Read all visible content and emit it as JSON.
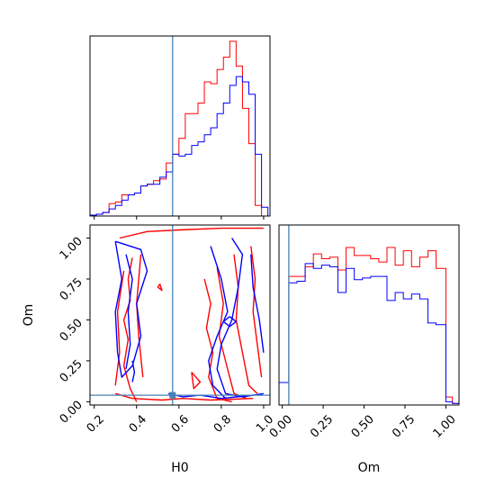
{
  "chart_data": {
    "type": "corner",
    "parameters": [
      "H0",
      "Om"
    ],
    "truth": {
      "H0": 0.57,
      "Om": 0.04
    },
    "colors": {
      "set_a": "#ff0000",
      "set_b": "#0000ff",
      "truth": "#4682b4"
    },
    "grid": false,
    "axes": {
      "H0": {
        "label": "H0",
        "range": [
          0.18,
          1.03
        ],
        "ticks": [
          0.2,
          0.4,
          0.6,
          0.8,
          1.0
        ],
        "tick_labels": [
          "0.2",
          "0.4",
          "0.6",
          "0.8",
          "1.0"
        ]
      },
      "Om": {
        "label": "Om",
        "range": [
          -0.02,
          1.08
        ],
        "ticks": [
          0.0,
          0.25,
          0.5,
          0.75,
          1.0
        ],
        "tick_labels": [
          "0.00",
          "0.25",
          "0.50",
          "0.75",
          "1.00"
        ]
      }
    },
    "hist_H0": {
      "edges": [
        0.18,
        0.21,
        0.24,
        0.27,
        0.3,
        0.33,
        0.36,
        0.39,
        0.42,
        0.45,
        0.48,
        0.51,
        0.54,
        0.57,
        0.6,
        0.63,
        0.66,
        0.69,
        0.72,
        0.75,
        0.78,
        0.81,
        0.84,
        0.87,
        0.9,
        0.93,
        0.96,
        0.99,
        1.02
      ],
      "series": [
        {
          "color": "#ff0000",
          "counts": [
            0.005,
            0.01,
            0.02,
            0.07,
            0.08,
            0.12,
            0.12,
            0.13,
            0.17,
            0.18,
            0.2,
            0.21,
            0.3,
            0.35,
            0.44,
            0.58,
            0.58,
            0.64,
            0.76,
            0.75,
            0.83,
            0.9,
            0.99,
            0.85,
            0.61,
            0.41,
            0.06,
            0.0
          ]
        },
        {
          "color": "#0000ff",
          "counts": [
            0.005,
            0.01,
            0.02,
            0.04,
            0.06,
            0.09,
            0.12,
            0.13,
            0.17,
            0.18,
            0.18,
            0.22,
            0.25,
            0.35,
            0.34,
            0.35,
            0.4,
            0.42,
            0.46,
            0.5,
            0.58,
            0.64,
            0.74,
            0.79,
            0.76,
            0.69,
            0.35,
            0.05
          ]
        }
      ]
    },
    "hist_Om": {
      "edges": [
        -0.02,
        0.04,
        0.09,
        0.14,
        0.19,
        0.24,
        0.29,
        0.34,
        0.39,
        0.44,
        0.49,
        0.54,
        0.59,
        0.64,
        0.69,
        0.74,
        0.79,
        0.84,
        0.89,
        0.94,
        1.0,
        1.04,
        1.08
      ],
      "series": [
        {
          "color": "#ff0000",
          "counts": [
            0.14,
            0.8,
            0.8,
            0.86,
            0.94,
            0.91,
            0.92,
            0.84,
            0.98,
            0.93,
            0.93,
            0.91,
            0.89,
            0.98,
            0.87,
            0.96,
            0.86,
            0.92,
            0.96,
            0.85,
            0.05,
            0.01
          ]
        },
        {
          "color": "#0000ff",
          "counts": [
            0.14,
            0.76,
            0.77,
            0.88,
            0.85,
            0.87,
            0.86,
            0.7,
            0.85,
            0.78,
            0.79,
            0.8,
            0.8,
            0.65,
            0.7,
            0.66,
            0.69,
            0.66,
            0.51,
            0.5,
            0.02,
            0.01
          ]
        }
      ]
    },
    "contours": [
      {
        "color": "#ff0000",
        "paths": [
          [
            [
              0.32,
              1.0
            ],
            [
              0.45,
              1.04
            ],
            [
              0.6,
              1.05
            ],
            [
              0.8,
              1.06
            ],
            [
              1.0,
              1.06
            ]
          ],
          [
            [
              0.38,
              0.88
            ],
            [
              0.36,
              0.75
            ],
            [
              0.37,
              0.62
            ],
            [
              0.34,
              0.5
            ],
            [
              0.36,
              0.38
            ],
            [
              0.34,
              0.22
            ],
            [
              0.37,
              0.08
            ],
            [
              0.4,
              0.0
            ]
          ],
          [
            [
              0.34,
              0.8
            ],
            [
              0.31,
              0.55
            ],
            [
              0.32,
              0.3
            ],
            [
              0.3,
              0.1
            ]
          ],
          [
            [
              0.42,
              0.9
            ],
            [
              0.4,
              0.6
            ],
            [
              0.41,
              0.4
            ],
            [
              0.43,
              0.15
            ]
          ],
          [
            [
              0.51,
              0.72
            ],
            [
              0.52,
              0.68
            ],
            [
              0.5,
              0.7
            ],
            [
              0.51,
              0.72
            ]
          ],
          [
            [
              0.72,
              0.75
            ],
            [
              0.75,
              0.6
            ],
            [
              0.73,
              0.45
            ],
            [
              0.76,
              0.3
            ],
            [
              0.74,
              0.15
            ],
            [
              0.78,
              0.02
            ],
            [
              0.85,
              0.0
            ]
          ],
          [
            [
              0.78,
              0.82
            ],
            [
              0.81,
              0.6
            ],
            [
              0.79,
              0.4
            ],
            [
              0.83,
              0.2
            ],
            [
              0.86,
              0.05
            ],
            [
              0.92,
              0.02
            ]
          ],
          [
            [
              0.86,
              0.9
            ],
            [
              0.88,
              0.7
            ],
            [
              0.87,
              0.5
            ],
            [
              0.9,
              0.3
            ],
            [
              0.93,
              0.1
            ],
            [
              0.97,
              0.05
            ]
          ],
          [
            [
              0.94,
              0.95
            ],
            [
              0.96,
              0.75
            ],
            [
              0.95,
              0.55
            ],
            [
              0.97,
              0.35
            ],
            [
              0.99,
              0.15
            ]
          ],
          [
            [
              0.66,
              0.18
            ],
            [
              0.7,
              0.12
            ],
            [
              0.67,
              0.08
            ],
            [
              0.66,
              0.18
            ]
          ],
          [
            [
              0.3,
              0.05
            ],
            [
              0.38,
              0.02
            ],
            [
              0.52,
              0.01
            ],
            [
              0.62,
              0.02
            ],
            [
              0.75,
              0.01
            ],
            [
              0.95,
              0.02
            ]
          ]
        ]
      },
      {
        "color": "#0000ff",
        "paths": [
          [
            [
              0.3,
              0.98
            ],
            [
              0.42,
              0.93
            ],
            [
              0.45,
              0.8
            ],
            [
              0.4,
              0.6
            ],
            [
              0.42,
              0.4
            ],
            [
              0.38,
              0.22
            ],
            [
              0.33,
              0.15
            ],
            [
              0.31,
              0.3
            ],
            [
              0.3,
              0.55
            ],
            [
              0.33,
              0.75
            ],
            [
              0.3,
              0.98
            ]
          ],
          [
            [
              0.35,
              0.9
            ],
            [
              0.38,
              0.75
            ],
            [
              0.36,
              0.55
            ],
            [
              0.37,
              0.35
            ],
            [
              0.35,
              0.2
            ]
          ],
          [
            [
              0.38,
              0.25
            ],
            [
              0.39,
              0.18
            ],
            [
              0.38,
              0.12
            ]
          ],
          [
            [
              0.85,
              1.0
            ],
            [
              0.9,
              0.9
            ],
            [
              0.88,
              0.7
            ],
            [
              0.85,
              0.5
            ],
            [
              0.8,
              0.35
            ],
            [
              0.78,
              0.2
            ],
            [
              0.82,
              0.05
            ],
            [
              0.9,
              0.03
            ],
            [
              1.0,
              0.05
            ]
          ],
          [
            [
              0.75,
              0.95
            ],
            [
              0.8,
              0.75
            ],
            [
              0.83,
              0.55
            ],
            [
              0.78,
              0.4
            ],
            [
              0.74,
              0.25
            ],
            [
              0.76,
              0.1
            ],
            [
              0.82,
              0.02
            ]
          ],
          [
            [
              0.94,
              0.9
            ],
            [
              0.95,
              0.7
            ],
            [
              0.98,
              0.5
            ],
            [
              1.0,
              0.3
            ]
          ],
          [
            [
              0.84,
              0.52
            ],
            [
              0.87,
              0.49
            ],
            [
              0.84,
              0.46
            ],
            [
              0.81,
              0.49
            ],
            [
              0.84,
              0.52
            ]
          ],
          [
            [
              0.55,
              0.05
            ],
            [
              0.62,
              0.03
            ],
            [
              0.7,
              0.04
            ],
            [
              0.8,
              0.02
            ],
            [
              0.95,
              0.04
            ]
          ]
        ]
      }
    ]
  }
}
